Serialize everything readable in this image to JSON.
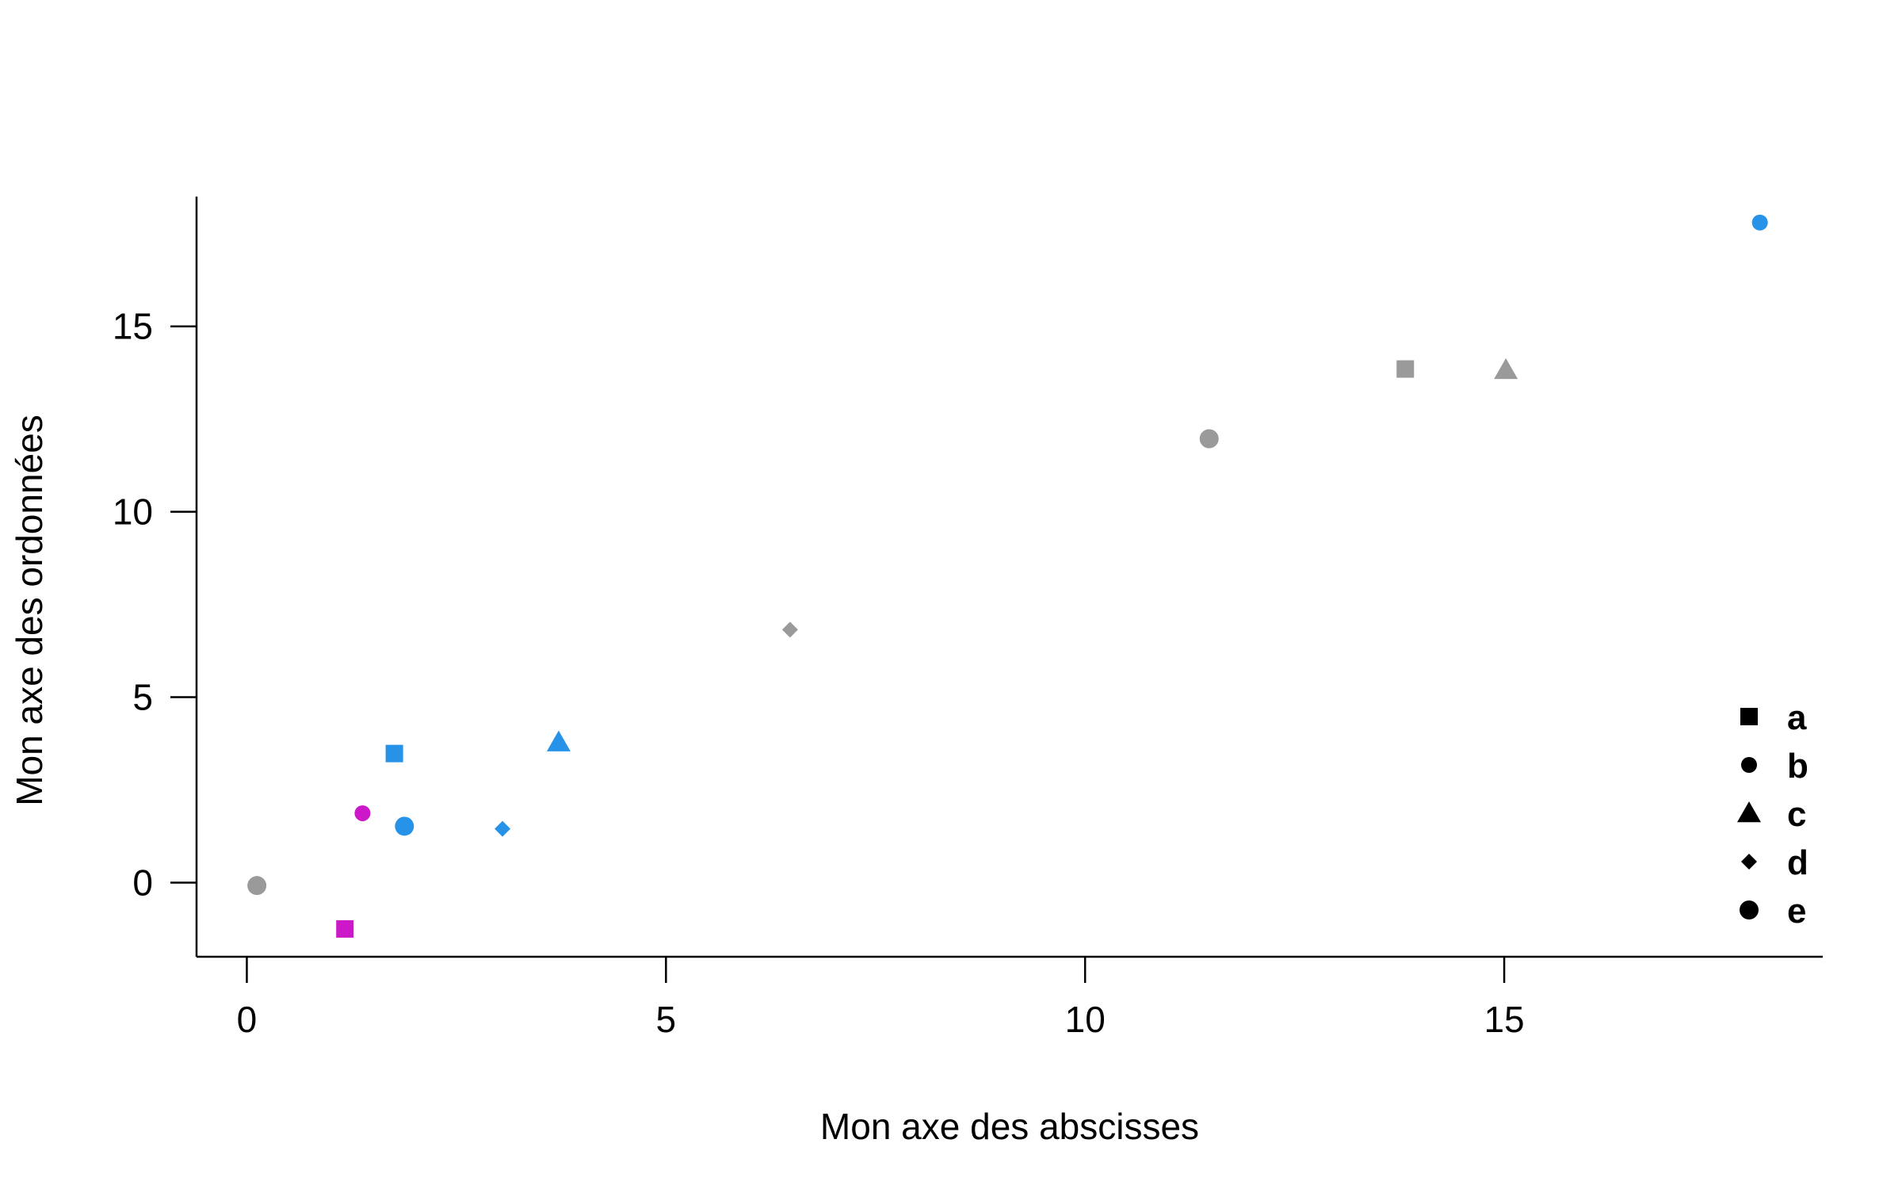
{
  "chart_data": {
    "type": "scatter",
    "title": "",
    "xlabel": "Mon axe des abscisses",
    "ylabel": "Mon axe des ordonnées",
    "xlim": [
      -0.6,
      18.8
    ],
    "ylim": [
      -2.0,
      18.5
    ],
    "xticks": [
      0,
      5,
      10,
      15
    ],
    "yticks": [
      0,
      5,
      10,
      15
    ],
    "grid": false,
    "legend_position": "bottom-right",
    "colors": {
      "gray": "#9a9a9a",
      "blue": "#2793e8",
      "magenta": "#cc18c8",
      "legend": "#000000"
    },
    "legend": [
      {
        "label": "a",
        "shape": "square"
      },
      {
        "label": "b",
        "shape": "circle-small"
      },
      {
        "label": "c",
        "shape": "triangle"
      },
      {
        "label": "d",
        "shape": "diamond"
      },
      {
        "label": "e",
        "shape": "circle"
      }
    ],
    "points": [
      {
        "x": 0.12,
        "y": -0.08,
        "shape": "circle",
        "color": "gray"
      },
      {
        "x": 1.17,
        "y": -1.25,
        "shape": "square",
        "color": "magenta"
      },
      {
        "x": 1.38,
        "y": 1.87,
        "shape": "circle-small",
        "color": "magenta"
      },
      {
        "x": 1.76,
        "y": 3.48,
        "shape": "square",
        "color": "blue"
      },
      {
        "x": 1.88,
        "y": 1.52,
        "shape": "circle",
        "color": "blue"
      },
      {
        "x": 3.05,
        "y": 1.45,
        "shape": "diamond",
        "color": "blue"
      },
      {
        "x": 3.72,
        "y": 3.78,
        "shape": "triangle",
        "color": "blue"
      },
      {
        "x": 6.48,
        "y": 6.82,
        "shape": "diamond",
        "color": "gray"
      },
      {
        "x": 11.48,
        "y": 11.97,
        "shape": "circle",
        "color": "gray"
      },
      {
        "x": 13.82,
        "y": 13.85,
        "shape": "square",
        "color": "gray"
      },
      {
        "x": 15.02,
        "y": 13.82,
        "shape": "triangle",
        "color": "gray"
      },
      {
        "x": 18.05,
        "y": 17.8,
        "shape": "circle-small",
        "color": "blue"
      }
    ]
  }
}
